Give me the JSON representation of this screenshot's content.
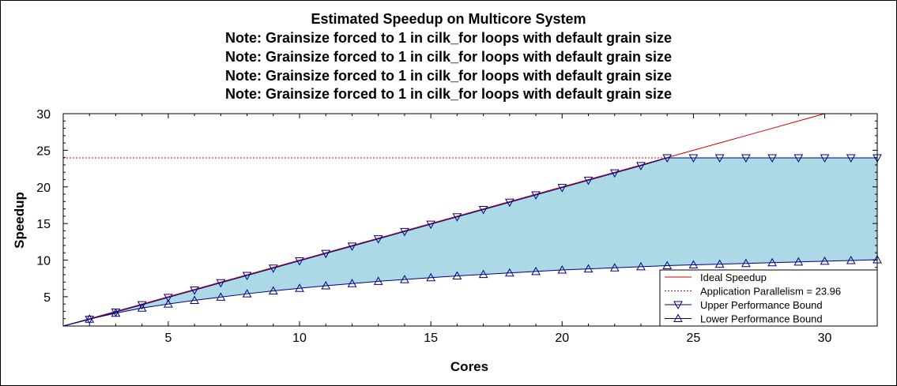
{
  "chart_data": {
    "type": "line",
    "title_lines": [
      "Estimated Speedup on Multicore System",
      "Note: Grainsize forced to 1 in cilk_for loops with default grain size",
      "Note: Grainsize forced to 1 in cilk_for loops with default grain size",
      "Note: Grainsize forced to 1 in cilk_for loops with default grain size",
      "Note: Grainsize forced to 1 in cilk_for loops with default grain size"
    ],
    "xlabel": "Cores",
    "ylabel": "Speedup",
    "xlim": [
      1,
      32
    ],
    "ylim": [
      1,
      30
    ],
    "xticks": [
      5,
      10,
      15,
      20,
      25,
      30
    ],
    "yticks": [
      5,
      10,
      15,
      20,
      25,
      30
    ],
    "grid": false,
    "legend_position": "bottom-right",
    "x": [
      1,
      2,
      3,
      4,
      5,
      6,
      7,
      8,
      9,
      10,
      11,
      12,
      13,
      14,
      15,
      16,
      17,
      18,
      19,
      20,
      21,
      22,
      23,
      24,
      25,
      26,
      27,
      28,
      29,
      30,
      31,
      32
    ],
    "series": [
      {
        "name": "Ideal Speedup",
        "style": "line",
        "color": "#cc0000",
        "values": [
          1,
          2,
          3,
          4,
          5,
          6,
          7,
          8,
          9,
          10,
          11,
          12,
          13,
          14,
          15,
          16,
          17,
          18,
          19,
          20,
          21,
          22,
          23,
          24,
          25,
          26,
          27,
          28,
          29,
          30,
          31,
          32
        ]
      },
      {
        "name": "Application Parallelism = 23.96",
        "style": "dashed",
        "color": "#cc0000",
        "values": [
          23.96,
          23.96,
          23.96,
          23.96,
          23.96,
          23.96,
          23.96,
          23.96,
          23.96,
          23.96,
          23.96,
          23.96,
          23.96,
          23.96,
          23.96,
          23.96,
          23.96,
          23.96,
          23.96,
          23.96,
          23.96,
          23.96,
          23.96,
          23.96,
          23.96,
          23.96,
          23.96,
          23.96,
          23.96,
          23.96,
          23.96,
          23.96
        ]
      },
      {
        "name": "Upper Performance Bound",
        "style": "line-triangle-down",
        "color": "#000080",
        "values": [
          1,
          1.9,
          2.9,
          3.9,
          4.9,
          5.9,
          6.9,
          7.9,
          8.9,
          9.9,
          10.9,
          11.9,
          12.9,
          13.9,
          14.9,
          15.9,
          16.9,
          17.9,
          18.9,
          19.9,
          20.9,
          21.9,
          22.9,
          23.96,
          23.96,
          23.96,
          23.96,
          23.96,
          23.96,
          23.96,
          23.96,
          23.96
        ]
      },
      {
        "name": "Lower Performance Bound",
        "style": "line-triangle-up",
        "color": "#000080",
        "values": [
          1,
          1.95,
          2.75,
          3.45,
          4.0,
          4.5,
          4.95,
          5.4,
          5.8,
          6.15,
          6.5,
          6.8,
          7.1,
          7.35,
          7.6,
          7.85,
          8.05,
          8.25,
          8.45,
          8.65,
          8.8,
          8.95,
          9.1,
          9.25,
          9.35,
          9.45,
          9.55,
          9.65,
          9.75,
          9.85,
          9.95,
          10.05
        ]
      }
    ],
    "colors": {
      "fill": "#add8e6",
      "ideal": "#cc0000",
      "bounds": "#000080"
    }
  }
}
